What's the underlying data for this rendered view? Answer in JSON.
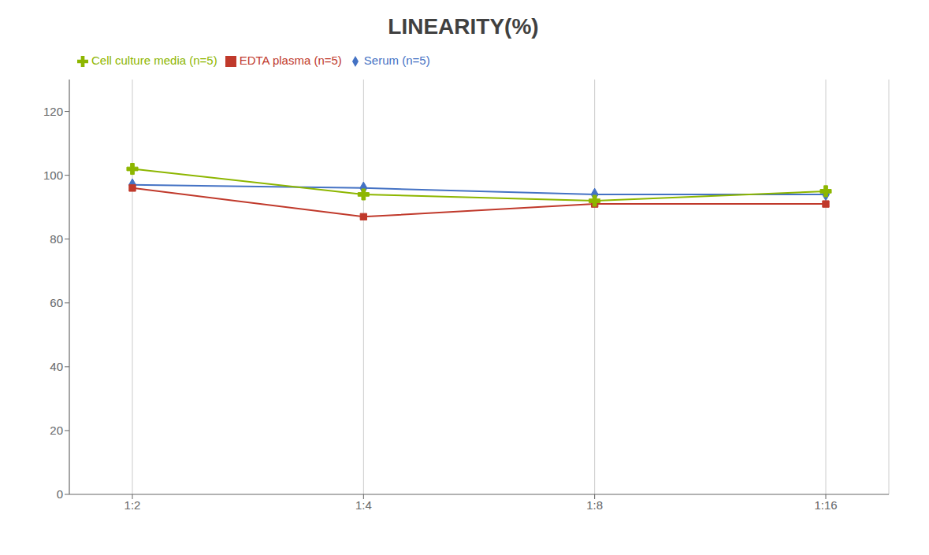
{
  "chart_data": {
    "type": "line",
    "title": "LINEARITY(%)",
    "categories": [
      "1:2",
      "1:4",
      "1:8",
      "1:16"
    ],
    "series": [
      {
        "name": "Serum (n=5)",
        "color": "#4472C4",
        "marker": "diamond",
        "values": [
          97,
          96,
          94,
          94
        ]
      },
      {
        "name": "EDTA plasma (n=5)",
        "color": "#C0392B",
        "marker": "square",
        "values": [
          96,
          87,
          91,
          91
        ]
      },
      {
        "name": "Cell culture media (n=5)",
        "color": "#8DB600",
        "marker": "plus",
        "values": [
          102,
          94,
          92,
          95
        ]
      }
    ],
    "ylim": [
      0,
      130
    ],
    "yticks": [
      0,
      20,
      40,
      60,
      80,
      100,
      120
    ],
    "grid": "x",
    "legend": "top left"
  }
}
